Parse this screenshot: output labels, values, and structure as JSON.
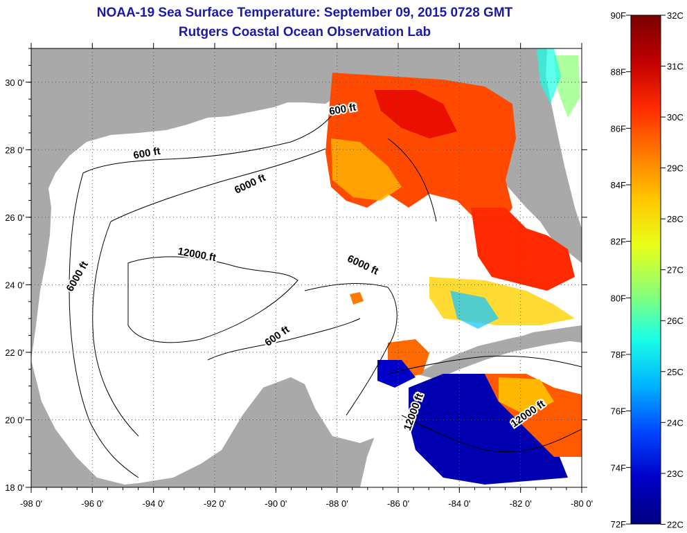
{
  "title": "NOAA-19 Sea Surface Temperature:  September 09, 2015 0728 GMT",
  "subtitle": "Rutgers Coastal Ocean Observation Lab",
  "map": {
    "lon_range": [
      -98,
      -80
    ],
    "lat_range": [
      18,
      31
    ],
    "lon_ticks": [
      "-98 0'",
      "-96 0'",
      "-94 0'",
      "-92 0'",
      "-90 0'",
      "-88 0'",
      "-86 0'",
      "-84 0'",
      "-82 0'",
      "-80 0'"
    ],
    "lat_ticks": [
      "18 0'",
      "20 0'",
      "22 0'",
      "24 0'",
      "26 0'",
      "28 0'",
      "30 0'"
    ],
    "grid": "dotted",
    "land_color": "#a9a9a9",
    "no_data_color": "#ffffff",
    "contour_labels": [
      {
        "text": "600 ft",
        "lon": -94.2,
        "lat": 27.8,
        "angle": -10
      },
      {
        "text": "600 ft",
        "lon": -87.8,
        "lat": 29.1,
        "angle": -10
      },
      {
        "text": "6000 ft",
        "lon": -90.8,
        "lat": 26.9,
        "angle": -25
      },
      {
        "text": "6000 ft",
        "lon": -96.4,
        "lat": 24.2,
        "angle": -60
      },
      {
        "text": "12000 ft",
        "lon": -92.6,
        "lat": 24.8,
        "angle": 10
      },
      {
        "text": "6000 ft",
        "lon": -87.2,
        "lat": 24.5,
        "angle": 25
      },
      {
        "text": "600 ft",
        "lon": -89.9,
        "lat": 22.4,
        "angle": -35
      },
      {
        "text": "12000 ft",
        "lon": -85.4,
        "lat": 20.2,
        "angle": -70
      },
      {
        "text": "12000 ft",
        "lon": -81.7,
        "lat": 20.1,
        "angle": -35
      }
    ]
  },
  "colorbar": {
    "f_labels": [
      "90F",
      "88F",
      "86F",
      "84F",
      "82F",
      "80F",
      "78F",
      "76F",
      "74F",
      "72F"
    ],
    "c_labels": [
      "32C",
      "31C",
      "30C",
      "29C",
      "28C",
      "27C",
      "26C",
      "25C",
      "24C",
      "23C",
      "22C"
    ],
    "colors": [
      "#7a0000",
      "#c00000",
      "#ff2a00",
      "#ff7a00",
      "#ffc800",
      "#e6ff1a",
      "#8cff73",
      "#19ffe6",
      "#00b4ff",
      "#0046ff",
      "#0000c8",
      "#000080"
    ]
  }
}
